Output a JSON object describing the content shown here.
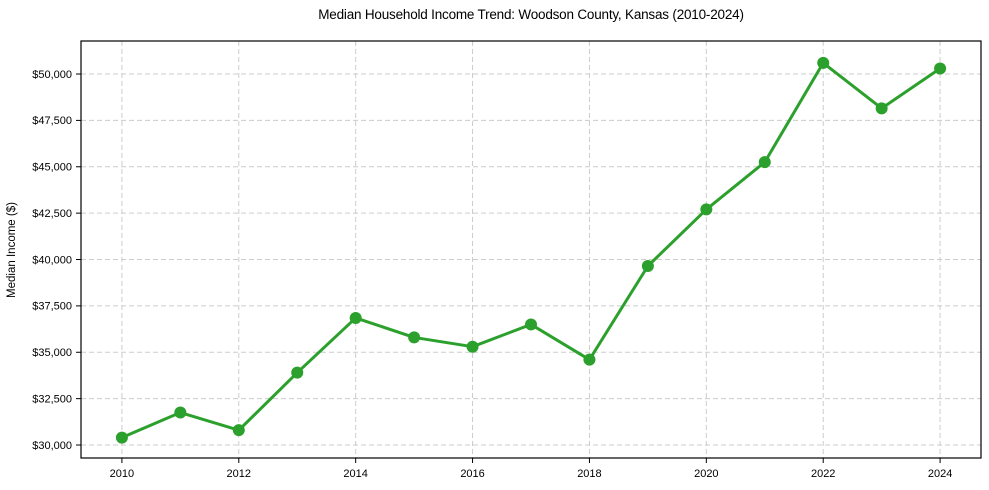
{
  "chart_data": {
    "type": "line",
    "title": "Median Household Income Trend: Woodson County, Kansas (2010-2024)",
    "xlabel": "",
    "ylabel": "Median Income ($)",
    "x": [
      2010,
      2011,
      2012,
      2013,
      2014,
      2015,
      2016,
      2017,
      2018,
      2019,
      2020,
      2021,
      2022,
      2023,
      2024
    ],
    "series": [
      {
        "name": "Median household income",
        "values": [
          30400,
          31750,
          30800,
          33900,
          36850,
          35800,
          35300,
          36500,
          34600,
          39650,
          42700,
          45250,
          50600,
          48150,
          50300
        ]
      }
    ],
    "xticks": [
      2010,
      2012,
      2014,
      2016,
      2018,
      2020,
      2022,
      2024
    ],
    "xtick_labels": [
      "2010",
      "2012",
      "2014",
      "2016",
      "2018",
      "2020",
      "2022",
      "2024"
    ],
    "yticks": [
      30000,
      32500,
      35000,
      37500,
      40000,
      42500,
      45000,
      47500,
      50000
    ],
    "ytick_labels": [
      "$30,000",
      "$32,500",
      "$35,000",
      "$37,500",
      "$40,000",
      "$42,500",
      "$45,000",
      "$47,500",
      "$50,000"
    ],
    "xlim": [
      2009.3,
      2024.7
    ],
    "ylim": [
      29300,
      51780
    ],
    "grid": true,
    "grid_style": "dashed",
    "legend": false,
    "marker": "circle",
    "colors": {
      "line": "#2ca02c",
      "marker": "#2ca02c",
      "grid": "#cccccc",
      "axis": "#000000",
      "text": "#000000",
      "background": "#ffffff"
    }
  }
}
